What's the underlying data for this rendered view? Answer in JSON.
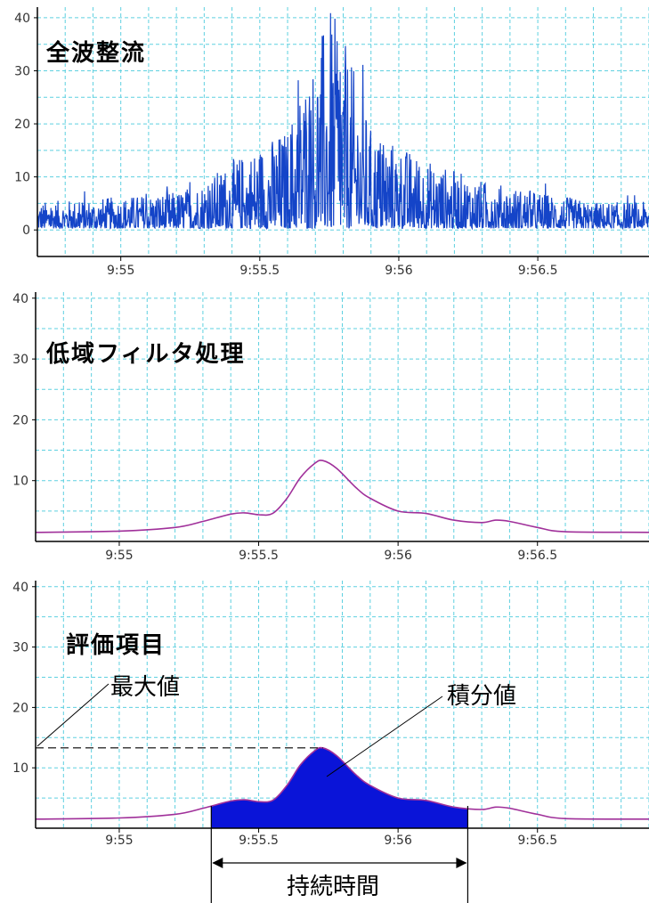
{
  "colors": {
    "raw_signal": "#1444c8",
    "filtered": "#a0309a",
    "fill": "#0a14d8",
    "grid": "#5ed0e0"
  },
  "chart_data": [
    {
      "type": "line",
      "title": "全波整流",
      "x_ticks": [
        "9:55",
        "9:55.5",
        "9:56",
        "9:56.5"
      ],
      "y_ticks": [
        "0",
        "10",
        "20",
        "30",
        "40"
      ],
      "xlim": [
        54.7,
        56.9
      ],
      "ylim": [
        -5,
        42
      ],
      "grid": true,
      "series": [
        {
          "envelope_x": [
            54.7,
            55.0,
            55.2,
            55.3,
            55.4,
            55.5,
            55.6,
            55.65,
            55.7,
            55.75,
            55.8,
            55.85,
            55.9,
            56.0,
            56.1,
            56.2,
            56.3,
            56.5,
            56.7,
            56.9
          ],
          "envelope_y": [
            5,
            6,
            7,
            9,
            13,
            16,
            19,
            28,
            33,
            42,
            36,
            28,
            19,
            16,
            13,
            11,
            9,
            7,
            5,
            5
          ]
        }
      ]
    },
    {
      "type": "line",
      "title": "低域フィルタ処理",
      "x_ticks": [
        "9:55",
        "9:55.5",
        "9:56",
        "9:56.5"
      ],
      "y_ticks": [
        "10",
        "20",
        "30",
        "40"
      ],
      "xlim": [
        54.7,
        56.9
      ],
      "ylim": [
        0,
        41
      ],
      "grid": true,
      "series": [
        {
          "x": [
            54.7,
            55.0,
            55.2,
            55.3,
            55.4,
            55.45,
            55.5,
            55.55,
            55.6,
            55.65,
            55.7,
            55.73,
            55.78,
            55.85,
            55.9,
            56.0,
            56.1,
            56.2,
            56.3,
            56.35,
            56.4,
            56.5,
            56.6,
            56.9
          ],
          "y": [
            1.5,
            1.7,
            2.3,
            3.3,
            4.5,
            4.7,
            4.4,
            4.6,
            7.0,
            10.5,
            12.8,
            13.3,
            12.0,
            8.8,
            7.1,
            5.0,
            4.6,
            3.5,
            3.1,
            3.5,
            3.3,
            2.3,
            1.6,
            1.5
          ]
        }
      ]
    },
    {
      "type": "area",
      "title": "評価項目",
      "x_ticks": [
        "9:55",
        "9:55.5",
        "9:56",
        "9:56.5"
      ],
      "y_ticks": [
        "10",
        "20",
        "30",
        "40"
      ],
      "xlim": [
        54.7,
        56.9
      ],
      "ylim": [
        0,
        41
      ],
      "grid": true,
      "annotations": [
        "最大値",
        "積分値",
        "持続時間"
      ],
      "peak_value": 13.3,
      "duration_x": [
        55.33,
        56.25
      ],
      "series": [
        {
          "x": [
            54.7,
            55.0,
            55.2,
            55.3,
            55.4,
            55.45,
            55.5,
            55.55,
            55.6,
            55.65,
            55.7,
            55.73,
            55.78,
            55.85,
            55.9,
            56.0,
            56.1,
            56.2,
            56.3,
            56.35,
            56.4,
            56.5,
            56.6,
            56.9
          ],
          "y": [
            1.5,
            1.7,
            2.3,
            3.3,
            4.5,
            4.7,
            4.4,
            4.6,
            7.0,
            10.5,
            12.8,
            13.3,
            12.0,
            8.8,
            7.1,
            5.0,
            4.6,
            3.5,
            3.1,
            3.5,
            3.3,
            2.3,
            1.6,
            1.5
          ]
        }
      ]
    }
  ]
}
